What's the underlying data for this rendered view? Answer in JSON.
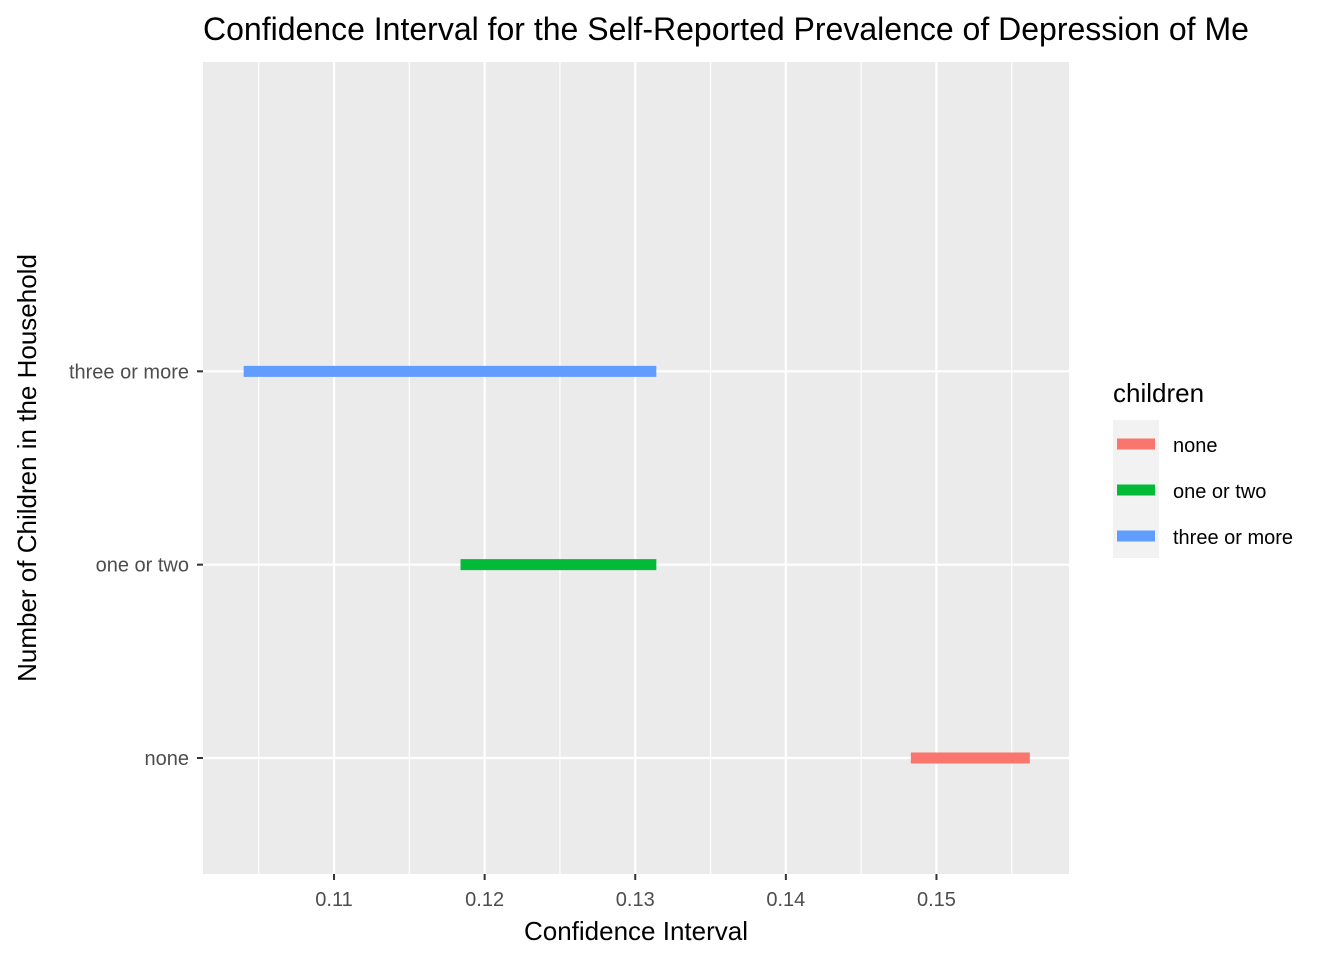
{
  "chart_data": {
    "type": "interval",
    "title": "Confidence Interval for the Self-Reported Prevalence of Depression of Me",
    "xlabel": "Confidence Interval",
    "ylabel": "Number of Children in the Household",
    "xlim": [
      0.1013,
      0.1588
    ],
    "x_ticks": [
      0.11,
      0.12,
      0.13,
      0.14,
      0.15
    ],
    "x_tick_labels": [
      "0.11",
      "0.12",
      "0.13",
      "0.14",
      "0.15"
    ],
    "categories": [
      "none",
      "one or two",
      "three or more"
    ],
    "intervals": [
      {
        "category": "none",
        "low": 0.1483,
        "high": 0.1562,
        "color": "#F8766D"
      },
      {
        "category": "one or two",
        "low": 0.1184,
        "high": 0.1314,
        "color": "#00BA38"
      },
      {
        "category": "three or more",
        "low": 0.104,
        "high": 0.1314,
        "color": "#619CFF"
      }
    ],
    "grid": true,
    "panel_background": "#EBEBEB",
    "legend": {
      "title": "children",
      "position": "right",
      "entries": [
        {
          "label": "none",
          "color": "#F8766D"
        },
        {
          "label": "one or two",
          "color": "#00BA38"
        },
        {
          "label": "three or more",
          "color": "#619CFF"
        }
      ]
    }
  }
}
